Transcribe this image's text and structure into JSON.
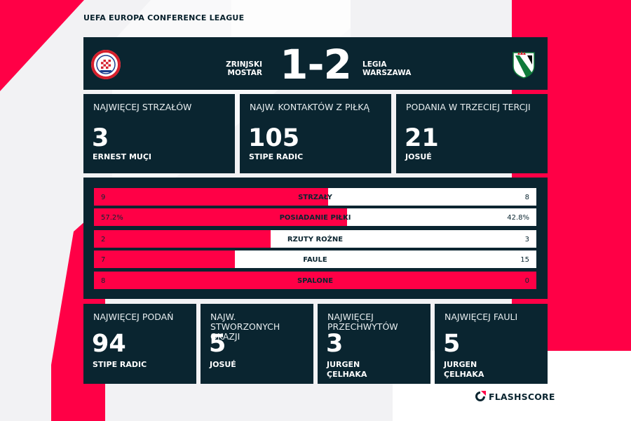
{
  "competition": "UEFA EUROPA CONFERENCE LEAGUE",
  "header": {
    "home_team": "ZRINJSKI\nMOSTAR",
    "away_team": "LEGIA\nWARSZAWA",
    "score": "1-2",
    "home_crest_icon": "zrinjski-crest-icon",
    "away_crest_icon": "legia-crest-icon"
  },
  "top_cards": [
    {
      "label": "NAJWIĘCEJ STRZAŁÓW",
      "value": "3",
      "player": "ERNEST MUÇI"
    },
    {
      "label": "NAJW. KONTAKTÓW Z PIŁKĄ",
      "value": "105",
      "player": "STIPE RADIC"
    },
    {
      "label": "PODANIA W TRZECIEJ TERCJI",
      "value": "21",
      "player": "JOSUÉ"
    }
  ],
  "stats": [
    {
      "label": "STRZAŁY",
      "home": "9",
      "away": "8",
      "home_share": 0.53
    },
    {
      "label": "POSIADANIE PIŁKI",
      "home": "57.2%",
      "away": "42.8%",
      "home_share": 0.572
    },
    {
      "label": "RZUTY ROŻNE",
      "home": "2",
      "away": "3",
      "home_share": 0.4
    },
    {
      "label": "FAULE",
      "home": "7",
      "away": "15",
      "home_share": 0.318
    },
    {
      "label": "SPALONE",
      "home": "8",
      "away": "0",
      "home_share": 1.0
    }
  ],
  "bottom_cards": [
    {
      "label": "NAJWIĘCEJ PODAŃ",
      "value": "94",
      "player": "STIPE RADIC"
    },
    {
      "label": "NAJW. STWORZONYCH OKAZJI",
      "value": "5",
      "player": "JOSUÉ"
    },
    {
      "label": "NAJWIĘCEJ PRZECHWYTÓW",
      "value": "3",
      "player": "JURGEN ÇELHAKA"
    },
    {
      "label": "NAJWIĘCEJ FAULI",
      "value": "5",
      "player": "JURGEN ÇELHAKA"
    }
  ],
  "brand": "FLASHSCORE",
  "colors": {
    "accent": "#ff0046",
    "panel": "#0a2530",
    "background": "#f2f2f4"
  }
}
